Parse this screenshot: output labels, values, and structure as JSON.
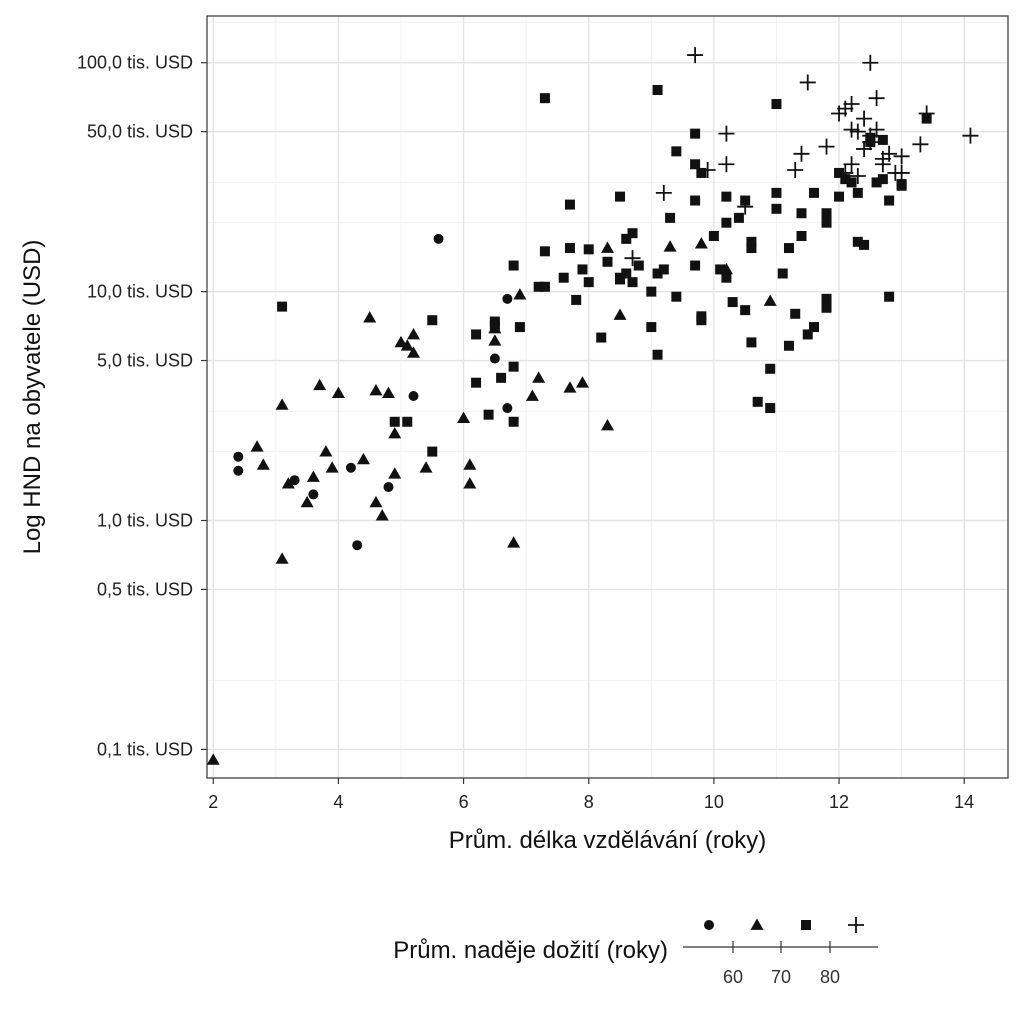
{
  "chart_data": {
    "type": "scatter",
    "xlabel": "Prům. délka vzdělávání (roky)",
    "ylabel": "Log HND na obyvatele (USD)",
    "x_scale": "linear",
    "y_scale": "log",
    "xlim": [
      1.9,
      14.7
    ],
    "ylim": [
      0.075,
      160
    ],
    "x_ticks": [
      2,
      4,
      6,
      8,
      10,
      12,
      14
    ],
    "y_ticks": [
      {
        "value": 0.1,
        "label": "0,1 tis. USD"
      },
      {
        "value": 0.5,
        "label": "0,5 tis. USD"
      },
      {
        "value": 1,
        "label": "1,0 tis. USD"
      },
      {
        "value": 5,
        "label": "5,0 tis. USD"
      },
      {
        "value": 10,
        "label": "10,0 tis. USD"
      },
      {
        "value": 50,
        "label": "50,0 tis. USD"
      },
      {
        "value": 100,
        "label": "100,0 tis. USD"
      }
    ],
    "grid": true,
    "legend": {
      "title": "Prům. naděje dožití (roky)",
      "position": "bottom",
      "shapes": [
        "circle",
        "triangle",
        "square",
        "plus"
      ],
      "scale_ticks": [
        60,
        70,
        80
      ]
    },
    "series": [
      {
        "shape": "circle",
        "points": [
          [
            2.4,
            1.9
          ],
          [
            2.4,
            1.65
          ],
          [
            3.3,
            1.5
          ],
          [
            3.6,
            1.3
          ],
          [
            4.3,
            0.78
          ],
          [
            4.2,
            1.7
          ],
          [
            4.8,
            1.4
          ],
          [
            5.2,
            3.5
          ],
          [
            5.6,
            17.0
          ],
          [
            6.7,
            3.1
          ],
          [
            6.5,
            5.1
          ],
          [
            6.7,
            9.3
          ]
        ]
      },
      {
        "shape": "triangle",
        "points": [
          [
            2.0,
            0.09
          ],
          [
            2.7,
            2.1
          ],
          [
            2.8,
            1.75
          ],
          [
            3.1,
            3.2
          ],
          [
            3.1,
            0.68
          ],
          [
            3.2,
            1.45
          ],
          [
            3.5,
            1.2
          ],
          [
            3.6,
            1.55
          ],
          [
            3.7,
            3.9
          ],
          [
            3.8,
            2.0
          ],
          [
            3.9,
            1.7
          ],
          [
            4.0,
            3.6
          ],
          [
            4.4,
            1.85
          ],
          [
            4.5,
            7.7
          ],
          [
            4.6,
            3.7
          ],
          [
            4.6,
            1.2
          ],
          [
            4.7,
            1.05
          ],
          [
            4.8,
            3.6
          ],
          [
            4.9,
            1.6
          ],
          [
            4.9,
            2.4
          ],
          [
            5.0,
            6.0
          ],
          [
            5.1,
            5.8
          ],
          [
            5.2,
            6.5
          ],
          [
            5.2,
            5.4
          ],
          [
            5.4,
            1.7
          ],
          [
            6.0,
            2.8
          ],
          [
            6.1,
            1.75
          ],
          [
            6.1,
            1.45
          ],
          [
            6.5,
            6.1
          ],
          [
            6.5,
            6.9
          ],
          [
            6.8,
            0.8
          ],
          [
            6.9,
            9.7
          ],
          [
            7.1,
            3.5
          ],
          [
            7.2,
            4.2
          ],
          [
            7.7,
            3.8
          ],
          [
            7.9,
            4.0
          ],
          [
            8.3,
            2.6
          ],
          [
            8.3,
            15.5
          ],
          [
            8.5,
            7.9
          ],
          [
            9.3,
            15.7
          ],
          [
            9.8,
            16.2
          ],
          [
            10.2,
            12.5
          ],
          [
            10.9,
            9.1
          ]
        ]
      },
      {
        "shape": "square",
        "points": [
          [
            3.1,
            8.6
          ],
          [
            4.9,
            2.7
          ],
          [
            5.1,
            2.7
          ],
          [
            5.5,
            7.5
          ],
          [
            5.5,
            2.0
          ],
          [
            6.2,
            4.0
          ],
          [
            6.2,
            6.5
          ],
          [
            6.4,
            2.9
          ],
          [
            6.5,
            7.4
          ],
          [
            6.5,
            7.1
          ],
          [
            6.6,
            4.2
          ],
          [
            6.8,
            2.7
          ],
          [
            6.8,
            4.7
          ],
          [
            6.9,
            7.0
          ],
          [
            6.8,
            13.0
          ],
          [
            7.2,
            10.5
          ],
          [
            7.3,
            10.5
          ],
          [
            7.3,
            15.0
          ],
          [
            7.3,
            70.0
          ],
          [
            7.6,
            11.5
          ],
          [
            7.7,
            15.5
          ],
          [
            7.7,
            24.0
          ],
          [
            7.8,
            9.2
          ],
          [
            7.9,
            12.5
          ],
          [
            8.0,
            15.3
          ],
          [
            8.0,
            11.0
          ],
          [
            8.2,
            6.3
          ],
          [
            8.3,
            13.5
          ],
          [
            8.5,
            11.5
          ],
          [
            8.5,
            11.3
          ],
          [
            8.5,
            26.0
          ],
          [
            8.6,
            17.0
          ],
          [
            8.6,
            12.0
          ],
          [
            8.7,
            18.0
          ],
          [
            8.7,
            11.0
          ],
          [
            8.8,
            13.0
          ],
          [
            9.0,
            7.0
          ],
          [
            9.0,
            10.0
          ],
          [
            9.1,
            5.3
          ],
          [
            9.1,
            76.0
          ],
          [
            9.1,
            12.0
          ],
          [
            9.2,
            12.5
          ],
          [
            9.3,
            21.0
          ],
          [
            9.4,
            9.5
          ],
          [
            9.4,
            41.0
          ],
          [
            9.7,
            36.0
          ],
          [
            9.7,
            49.0
          ],
          [
            9.7,
            25.0
          ],
          [
            9.7,
            13.0
          ],
          [
            9.8,
            7.5
          ],
          [
            9.8,
            7.8
          ],
          [
            9.8,
            33.0
          ],
          [
            10.0,
            17.5
          ],
          [
            10.1,
            12.5
          ],
          [
            10.2,
            20.0
          ],
          [
            10.2,
            11.5
          ],
          [
            10.2,
            26.0
          ],
          [
            10.3,
            9.0
          ],
          [
            10.4,
            21.0
          ],
          [
            10.5,
            25.0
          ],
          [
            10.5,
            8.3
          ],
          [
            10.6,
            16.5
          ],
          [
            10.6,
            15.5
          ],
          [
            10.6,
            6.0
          ],
          [
            10.7,
            3.3
          ],
          [
            10.9,
            3.1
          ],
          [
            10.9,
            4.6
          ],
          [
            11.0,
            27.0
          ],
          [
            11.0,
            23.0
          ],
          [
            11.0,
            66.0
          ],
          [
            11.1,
            12.0
          ],
          [
            11.2,
            5.8
          ],
          [
            11.2,
            15.5
          ],
          [
            11.3,
            8.0
          ],
          [
            11.4,
            17.5
          ],
          [
            11.4,
            22.0
          ],
          [
            11.5,
            6.5
          ],
          [
            11.6,
            7.0
          ],
          [
            11.6,
            27.0
          ],
          [
            11.8,
            9.3
          ],
          [
            11.8,
            8.5
          ],
          [
            11.8,
            20.0
          ],
          [
            11.8,
            22.0
          ],
          [
            12.0,
            26.0
          ],
          [
            12.0,
            33.0
          ],
          [
            12.1,
            31.0
          ],
          [
            12.2,
            30.0
          ],
          [
            12.3,
            27.0
          ],
          [
            12.3,
            16.5
          ],
          [
            12.4,
            16.0
          ],
          [
            12.5,
            47.0
          ],
          [
            12.5,
            45.0
          ],
          [
            12.6,
            30.0
          ],
          [
            12.7,
            31.0
          ],
          [
            12.7,
            46.0
          ],
          [
            12.8,
            25.0
          ],
          [
            12.8,
            9.5
          ],
          [
            13.0,
            29.0
          ],
          [
            13.0,
            29.5
          ],
          [
            13.4,
            57.0
          ]
        ]
      },
      {
        "shape": "plus",
        "points": [
          [
            8.7,
            14.0
          ],
          [
            9.2,
            27.0
          ],
          [
            9.7,
            108.0
          ],
          [
            9.9,
            34.0
          ],
          [
            10.2,
            49.0
          ],
          [
            10.2,
            36.0
          ],
          [
            10.5,
            23.5
          ],
          [
            11.3,
            34.0
          ],
          [
            11.4,
            40.0
          ],
          [
            11.5,
            82.0
          ],
          [
            11.8,
            43.0
          ],
          [
            12.0,
            60.0
          ],
          [
            12.1,
            33.0
          ],
          [
            12.1,
            63.0
          ],
          [
            12.2,
            66.0
          ],
          [
            12.2,
            51.0
          ],
          [
            12.2,
            36.0
          ],
          [
            12.3,
            32.0
          ],
          [
            12.3,
            50.0
          ],
          [
            12.4,
            42.0
          ],
          [
            12.4,
            57.0
          ],
          [
            12.5,
            100.0
          ],
          [
            12.5,
            45.0
          ],
          [
            12.5,
            48.0
          ],
          [
            12.6,
            70.0
          ],
          [
            12.6,
            51.0
          ],
          [
            12.7,
            38.0
          ],
          [
            12.7,
            36.0
          ],
          [
            12.8,
            40.0
          ],
          [
            12.9,
            33.0
          ],
          [
            13.0,
            33.0
          ],
          [
            13.0,
            39.0
          ],
          [
            13.3,
            44.0
          ],
          [
            13.4,
            60.0
          ],
          [
            14.1,
            48.0
          ]
        ]
      }
    ]
  }
}
